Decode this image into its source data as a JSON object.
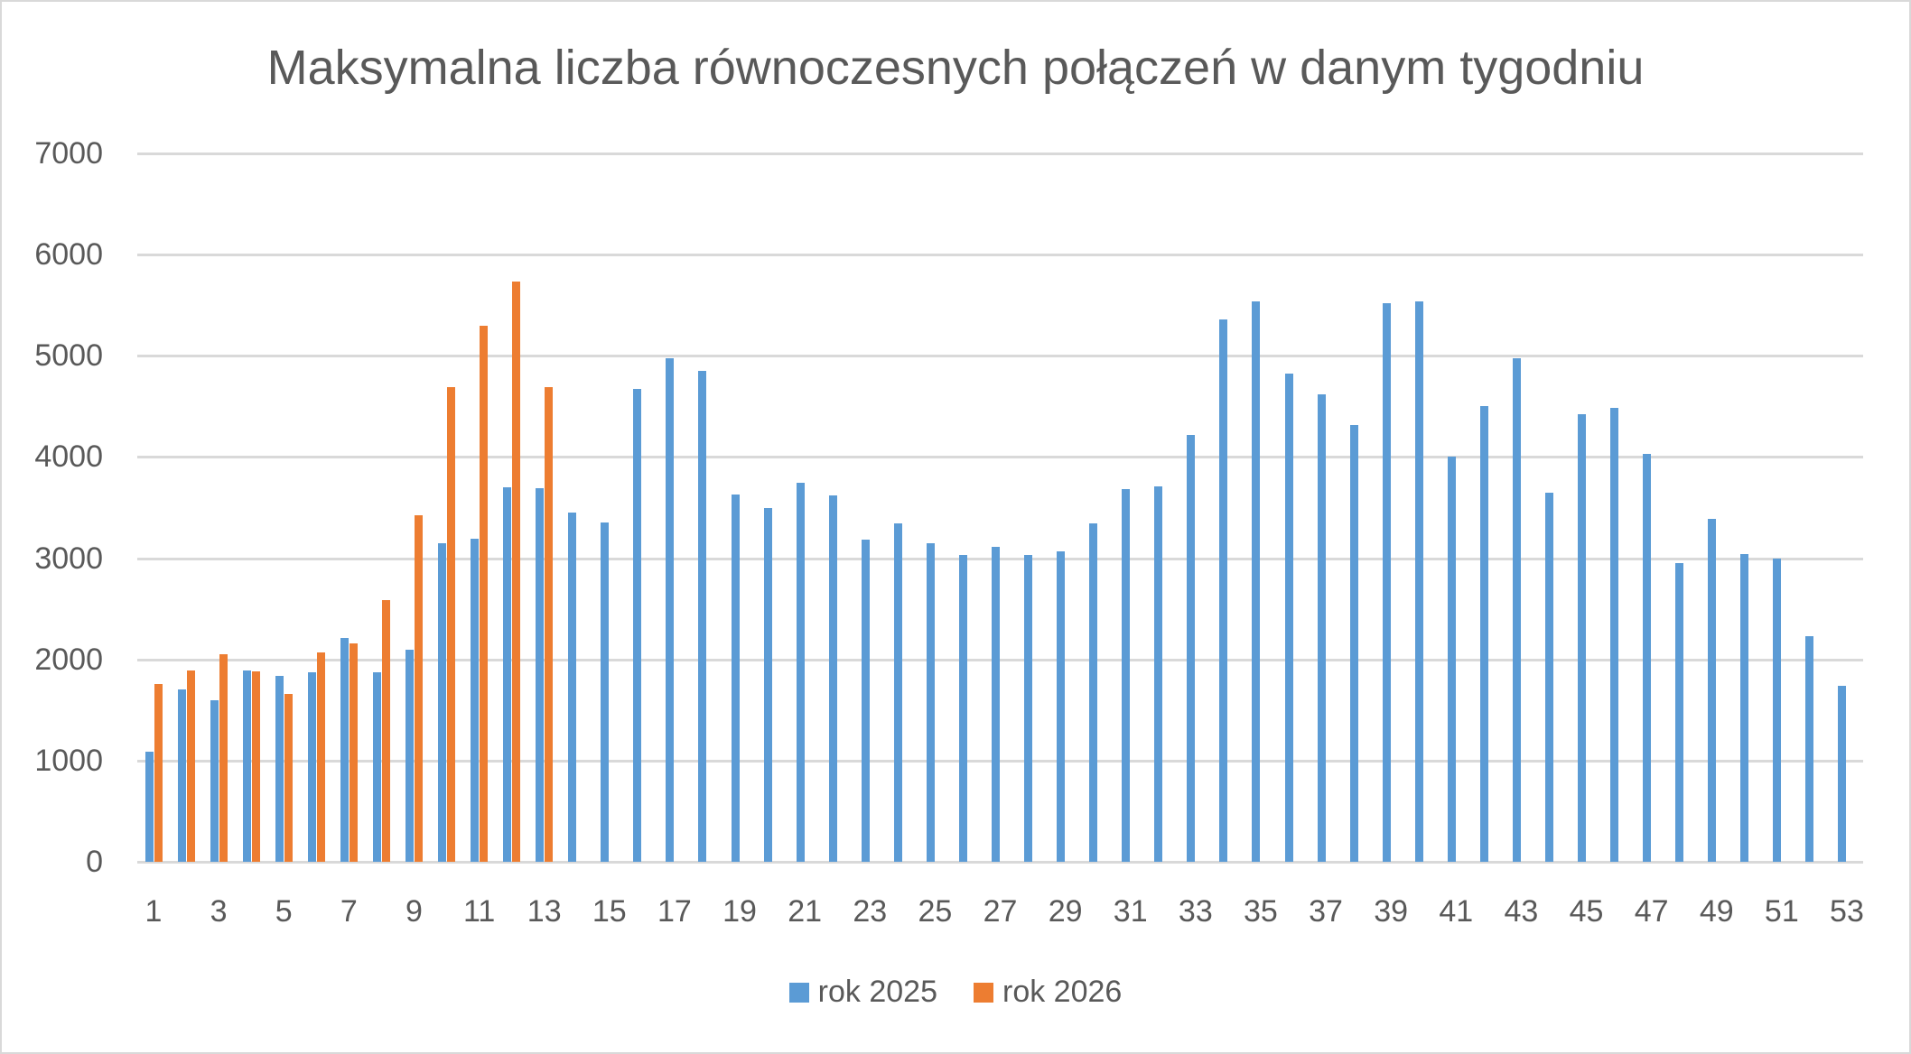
{
  "title": "Maksymalna liczba równoczesnych połączeń w danym tygodniu",
  "colors": {
    "rok_2025": "#5b9bd5",
    "rok_2026": "#ed7d31",
    "grid": "#d9d9d9",
    "text": "#595959"
  },
  "legend": [
    {
      "label": "rok 2025",
      "color": "#5b9bd5"
    },
    {
      "label": "rok 2026",
      "color": "#ed7d31"
    }
  ],
  "y_ticks": [
    "0",
    "1000",
    "2000",
    "3000",
    "4000",
    "5000",
    "6000",
    "7000"
  ],
  "x_tick_labels": [
    "1",
    "3",
    "5",
    "7",
    "9",
    "11",
    "13",
    "15",
    "17",
    "19",
    "21",
    "23",
    "25",
    "27",
    "29",
    "31",
    "33",
    "35",
    "37",
    "39",
    "41",
    "43",
    "45",
    "47",
    "49",
    "51",
    "53"
  ],
  "chart_data": {
    "type": "bar",
    "title": "Maksymalna liczba równoczesnych połączeń w danym tygodniu",
    "xlabel": "",
    "ylabel": "",
    "ylim": [
      0,
      7000
    ],
    "grid": true,
    "legend_position": "bottom",
    "categories": [
      1,
      2,
      3,
      4,
      5,
      6,
      7,
      8,
      9,
      10,
      11,
      12,
      13,
      14,
      15,
      16,
      17,
      18,
      19,
      20,
      21,
      22,
      23,
      24,
      25,
      26,
      27,
      28,
      29,
      30,
      31,
      32,
      33,
      34,
      35,
      36,
      37,
      38,
      39,
      40,
      41,
      42,
      43,
      44,
      45,
      46,
      47,
      48,
      49,
      50,
      51,
      52,
      53
    ],
    "series": [
      {
        "name": "rok 2025",
        "color": "#5b9bd5",
        "values": [
          1090,
          1700,
          1600,
          1895,
          1840,
          1870,
          2215,
          1870,
          2100,
          3150,
          3195,
          3705,
          3690,
          3455,
          3355,
          4675,
          4980,
          4855,
          3630,
          3500,
          3745,
          3620,
          3180,
          3345,
          3145,
          3030,
          3115,
          3030,
          3070,
          3340,
          3680,
          3710,
          4215,
          5355,
          5535,
          4820,
          4615,
          4315,
          5520,
          5535,
          4000,
          4500,
          4975,
          3650,
          4420,
          4485,
          4035,
          2950,
          3385,
          3040,
          2995,
          2230,
          1735
        ]
      },
      {
        "name": "rok 2026",
        "color": "#ed7d31",
        "values": [
          1760,
          1895,
          2050,
          1885,
          1655,
          2065,
          2160,
          2585,
          3420,
          4695,
          5295,
          5730,
          4690,
          null,
          null,
          null,
          null,
          null,
          null,
          null,
          null,
          null,
          null,
          null,
          null,
          null,
          null,
          null,
          null,
          null,
          null,
          null,
          null,
          null,
          null,
          null,
          null,
          null,
          null,
          null,
          null,
          null,
          null,
          null,
          null,
          null,
          null,
          null,
          null,
          null,
          null,
          null,
          null
        ]
      }
    ]
  }
}
